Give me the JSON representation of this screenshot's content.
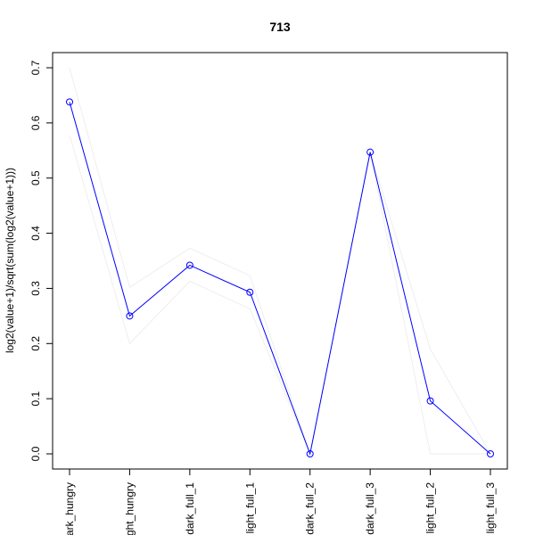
{
  "chart_data": {
    "type": "line",
    "title": "713",
    "xlabel": "",
    "ylabel": "log2(value+1)/sqrt(sum(log2(value+1)))",
    "categories": [
      "dark_hungry",
      "light_hungry",
      "dark_full_1",
      "light_full_1",
      "dark_full_2",
      "dark_full_3",
      "light_full_2",
      "light_full_3"
    ],
    "ylim": [
      0.0,
      0.7
    ],
    "y_ticks": [
      "0.0",
      "0.1",
      "0.2",
      "0.3",
      "0.4",
      "0.5",
      "0.6",
      "0.7"
    ],
    "grid": false,
    "series": [
      {
        "values": [
          0.638,
          0.25,
          0.342,
          0.293,
          0.0,
          0.547,
          0.096,
          0.0
        ],
        "color": "#0000ff",
        "markers": "open-circle"
      },
      {
        "values": [
          0.7,
          0.302,
          0.373,
          0.323,
          0.0,
          0.547,
          0.19,
          0.0
        ],
        "color": "#eeeeee"
      },
      {
        "values": [
          0.578,
          0.2,
          0.313,
          0.263,
          0.0,
          0.547,
          0.0,
          0.0
        ],
        "color": "#eeeeee"
      }
    ]
  }
}
